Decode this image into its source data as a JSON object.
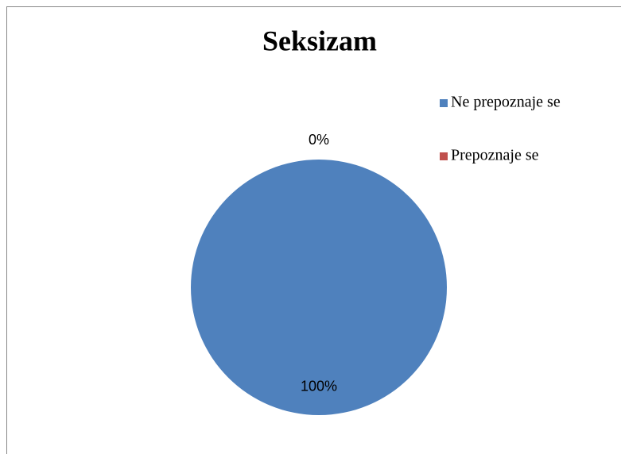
{
  "chart_data": {
    "type": "pie",
    "title": "Seksizam",
    "categories": [
      "Ne prepoznaje se",
      "Prepoznaje se"
    ],
    "values": [
      100,
      0
    ],
    "value_labels": [
      "100%",
      "0%"
    ],
    "colors": [
      "#4f81bd",
      "#c0504d"
    ],
    "legend": "right"
  }
}
